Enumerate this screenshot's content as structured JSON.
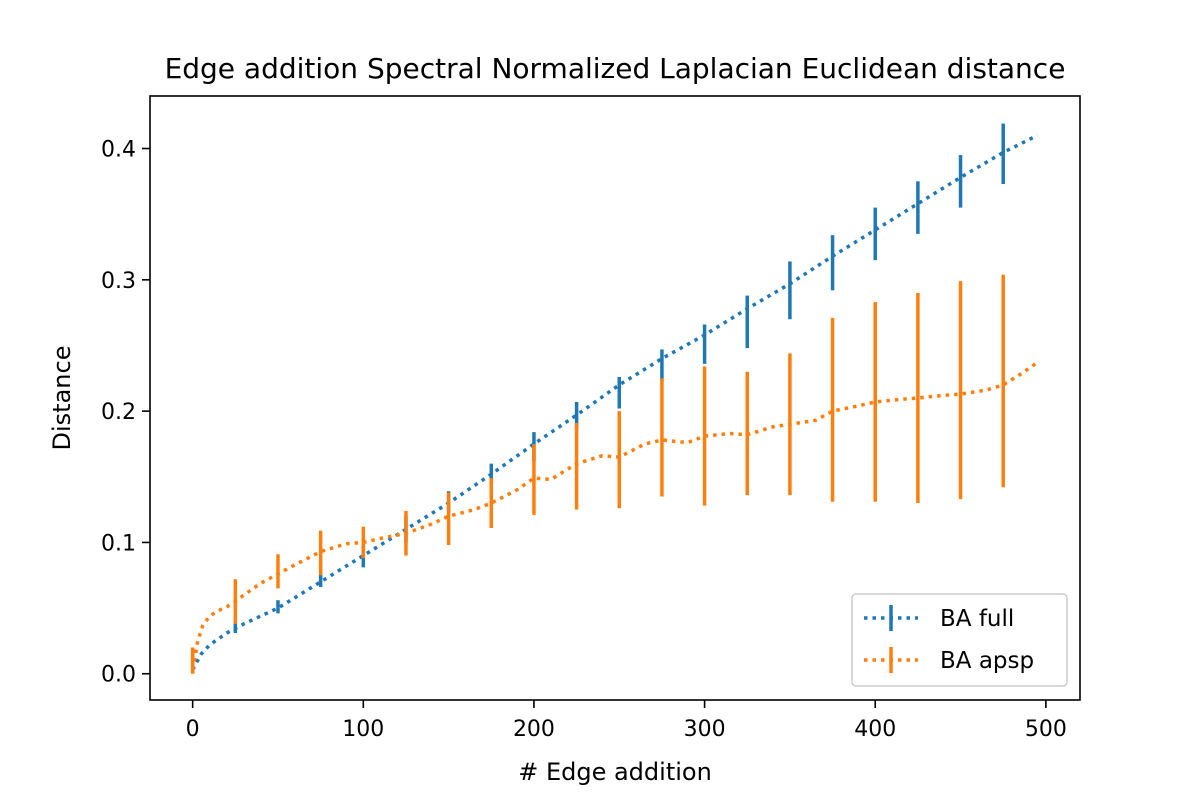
{
  "chart_data": {
    "type": "line",
    "title": "Edge addition Spectral Normalized Laplacian Euclidean distance",
    "xlabel": "# Edge addition",
    "ylabel": "Distance",
    "xlim": [
      -25,
      520
    ],
    "ylim": [
      -0.02,
      0.44
    ],
    "xticks": [
      0,
      100,
      200,
      300,
      400,
      500
    ],
    "yticks": [
      0.0,
      0.1,
      0.2,
      0.3,
      0.4
    ],
    "xtick_labels": [
      "0",
      "100",
      "200",
      "300",
      "400",
      "500"
    ],
    "ytick_labels": [
      "0.0",
      "0.1",
      "0.2",
      "0.3",
      "0.4"
    ],
    "grid": false,
    "legend_position": "bottom-right",
    "series": [
      {
        "name": "BA full",
        "color": "#1f77b4",
        "line": {
          "x": [
            0,
            5,
            10,
            20,
            30,
            50,
            75,
            100,
            125,
            150,
            175,
            200,
            225,
            250,
            275,
            300,
            325,
            350,
            375,
            400,
            425,
            450,
            475,
            495
          ],
          "y": [
            0.003,
            0.015,
            0.022,
            0.031,
            0.038,
            0.05,
            0.07,
            0.09,
            0.11,
            0.13,
            0.152,
            0.175,
            0.197,
            0.22,
            0.24,
            0.258,
            0.278,
            0.297,
            0.318,
            0.338,
            0.358,
            0.378,
            0.397,
            0.41
          ]
        },
        "errorbars": {
          "x": [
            0,
            25,
            50,
            75,
            100,
            125,
            150,
            175,
            200,
            225,
            250,
            275,
            300,
            325,
            350,
            375,
            400,
            425,
            450,
            475
          ],
          "y": [
            0.01,
            0.035,
            0.051,
            0.071,
            0.09,
            0.11,
            0.131,
            0.152,
            0.173,
            0.197,
            0.214,
            0.235,
            0.251,
            0.268,
            0.292,
            0.313,
            0.335,
            0.355,
            0.375,
            0.396
          ],
          "err": [
            0.009,
            0.004,
            0.005,
            0.005,
            0.009,
            0.01,
            0.008,
            0.008,
            0.011,
            0.01,
            0.012,
            0.012,
            0.015,
            0.02,
            0.022,
            0.021,
            0.02,
            0.02,
            0.02,
            0.023
          ]
        }
      },
      {
        "name": "BA apsp",
        "color": "#ff7f0e",
        "line": {
          "x": [
            0,
            3,
            6,
            10,
            15,
            20,
            25,
            30,
            40,
            50,
            60,
            75,
            90,
            100,
            110,
            125,
            140,
            150,
            165,
            175,
            190,
            200,
            210,
            225,
            240,
            250,
            265,
            275,
            290,
            300,
            315,
            325,
            340,
            350,
            365,
            375,
            390,
            400,
            415,
            425,
            440,
            450,
            465,
            475,
            485,
            495
          ],
          "y": [
            0.003,
            0.025,
            0.037,
            0.044,
            0.048,
            0.051,
            0.055,
            0.06,
            0.069,
            0.076,
            0.083,
            0.093,
            0.099,
            0.1,
            0.103,
            0.107,
            0.114,
            0.12,
            0.125,
            0.13,
            0.14,
            0.149,
            0.148,
            0.16,
            0.166,
            0.165,
            0.175,
            0.178,
            0.176,
            0.181,
            0.183,
            0.182,
            0.188,
            0.19,
            0.193,
            0.2,
            0.204,
            0.207,
            0.209,
            0.21,
            0.212,
            0.213,
            0.216,
            0.22,
            0.228,
            0.237
          ]
        },
        "errorbars": {
          "x": [
            0,
            25,
            50,
            75,
            100,
            125,
            150,
            175,
            200,
            225,
            250,
            275,
            300,
            325,
            350,
            375,
            400,
            425,
            450,
            475
          ],
          "y": [
            0.01,
            0.055,
            0.078,
            0.092,
            0.1,
            0.107,
            0.118,
            0.13,
            0.148,
            0.158,
            0.163,
            0.18,
            0.181,
            0.183,
            0.19,
            0.201,
            0.207,
            0.21,
            0.216,
            0.223
          ],
          "err": [
            0.01,
            0.017,
            0.013,
            0.017,
            0.012,
            0.017,
            0.02,
            0.019,
            0.027,
            0.033,
            0.037,
            0.045,
            0.053,
            0.047,
            0.054,
            0.07,
            0.076,
            0.08,
            0.083,
            0.081
          ]
        }
      }
    ]
  }
}
